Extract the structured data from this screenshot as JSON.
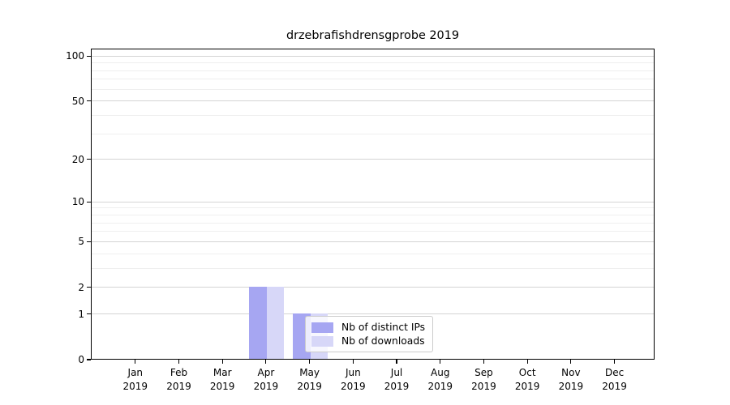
{
  "title": "drzebrafishdrensgprobe 2019",
  "legend": {
    "items": [
      {
        "label": "Nb of distinct IPs",
        "color": "#a6a6f2"
      },
      {
        "label": "Nb of downloads",
        "color": "#d7d7f8"
      }
    ]
  },
  "chart_data": {
    "type": "bar",
    "title": "drzebrafishdrensgprobe 2019",
    "categories": [
      "Jan 2019",
      "Feb 2019",
      "Mar 2019",
      "Apr 2019",
      "May 2019",
      "Jun 2019",
      "Jul 2019",
      "Aug 2019",
      "Sep 2019",
      "Oct 2019",
      "Nov 2019",
      "Dec 2019"
    ],
    "series": [
      {
        "name": "Nb of distinct IPs",
        "color": "#a6a6f2",
        "values": [
          0,
          0,
          0,
          2,
          1,
          0,
          0,
          0,
          0,
          0,
          0,
          0
        ]
      },
      {
        "name": "Nb of downloads",
        "color": "#d7d7f8",
        "values": [
          0,
          0,
          0,
          2,
          1,
          0,
          0,
          0,
          0,
          0,
          0,
          0
        ]
      }
    ],
    "xlabel": "",
    "ylabel": "",
    "yscale": "log1p",
    "ylim": [
      0,
      112
    ],
    "xlim": [
      -1.02,
      11.92
    ],
    "yticks": [
      0,
      1,
      2,
      5,
      10,
      20,
      50,
      100
    ],
    "minor_gridlines": [
      3,
      4,
      6,
      7,
      8,
      9,
      30,
      40,
      60,
      70,
      80,
      90
    ],
    "grid": true,
    "legend_position": "inside-lower-center",
    "bar_width_units": 0.4
  },
  "colors": {
    "axis": "#000000",
    "grid_major": "#d4d4d4",
    "grid_minor": "#efefef",
    "background": "#ffffff"
  }
}
